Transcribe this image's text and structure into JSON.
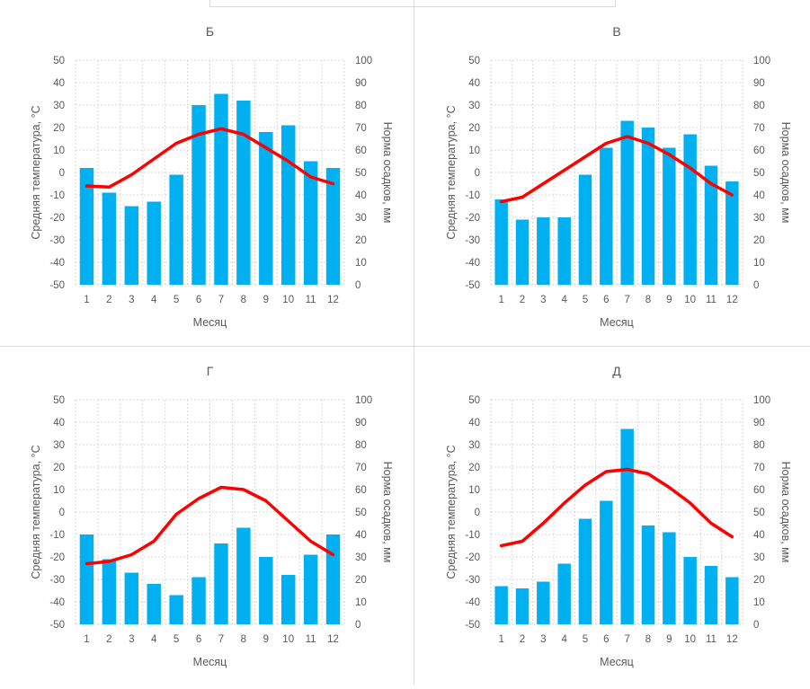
{
  "colors": {
    "bar": "#00B0F0",
    "line": "#FF0000",
    "grid": "#d9d9d9",
    "text": "#595959"
  },
  "common": {
    "xlabel": "Месяц",
    "ylabel_left": "Средняя температура, °С",
    "ylabel_right": "Норма осадков, мм",
    "months": [
      "1",
      "2",
      "3",
      "4",
      "5",
      "6",
      "7",
      "8",
      "9",
      "10",
      "11",
      "12"
    ],
    "left_ticks": [
      "50",
      "40",
      "30",
      "20",
      "10",
      "0",
      "-10",
      "-20",
      "-30",
      "-40",
      "-50"
    ],
    "right_ticks": [
      "100",
      "90",
      "80",
      "70",
      "60",
      "50",
      "40",
      "30",
      "20",
      "10",
      "0"
    ]
  },
  "chart_data": [
    {
      "type": "bar",
      "title": "Б",
      "categories": [
        "1",
        "2",
        "3",
        "4",
        "5",
        "6",
        "7",
        "8",
        "9",
        "10",
        "11",
        "12"
      ],
      "xlabel": "Месяц",
      "ylabel": "Средняя температура, °С",
      "y2label": "Норма осадков, мм",
      "ylim": [
        -50,
        50
      ],
      "y2lim": [
        0,
        100
      ],
      "grid": true,
      "series": [
        {
          "name": "Норма осадков, мм",
          "type": "bar",
          "axis": "right",
          "values": [
            52,
            41,
            35,
            37,
            49,
            80,
            85,
            82,
            68,
            71,
            55,
            52
          ]
        },
        {
          "name": "Средняя температура, °С",
          "type": "line",
          "axis": "left",
          "values": [
            -6,
            -6.5,
            -1,
            6,
            13,
            17,
            19.5,
            17,
            11,
            5,
            -2,
            -5
          ]
        }
      ]
    },
    {
      "type": "bar",
      "title": "В",
      "categories": [
        "1",
        "2",
        "3",
        "4",
        "5",
        "6",
        "7",
        "8",
        "9",
        "10",
        "11",
        "12"
      ],
      "xlabel": "Месяц",
      "ylabel": "Средняя температура, °С",
      "y2label": "Норма осадков, мм",
      "ylim": [
        -50,
        50
      ],
      "y2lim": [
        0,
        100
      ],
      "grid": true,
      "series": [
        {
          "name": "Норма осадков, мм",
          "type": "bar",
          "axis": "right",
          "values": [
            38,
            29,
            30,
            30,
            49,
            61,
            73,
            70,
            61,
            67,
            53,
            46
          ]
        },
        {
          "name": "Средняя температура, °С",
          "type": "line",
          "axis": "left",
          "values": [
            -13,
            -11,
            -5,
            1,
            7,
            13,
            16,
            13,
            8,
            2,
            -5,
            -10
          ]
        }
      ]
    },
    {
      "type": "bar",
      "title": "Г",
      "categories": [
        "1",
        "2",
        "3",
        "4",
        "5",
        "6",
        "7",
        "8",
        "9",
        "10",
        "11",
        "12"
      ],
      "xlabel": "Месяц",
      "ylabel": "Средняя температура, °С",
      "y2label": "Норма осадков, мм",
      "ylim": [
        -50,
        50
      ],
      "y2lim": [
        0,
        100
      ],
      "grid": true,
      "series": [
        {
          "name": "Норма осадков, мм",
          "type": "bar",
          "axis": "right",
          "values": [
            40,
            29,
            23,
            18,
            13,
            21,
            36,
            43,
            30,
            22,
            31,
            40
          ]
        },
        {
          "name": "Средняя температура, °С",
          "type": "line",
          "axis": "left",
          "values": [
            -23,
            -22,
            -19,
            -13,
            -1,
            6,
            11,
            10,
            5,
            -4,
            -13,
            -19
          ]
        }
      ]
    },
    {
      "type": "bar",
      "title": "Д",
      "categories": [
        "1",
        "2",
        "3",
        "4",
        "5",
        "6",
        "7",
        "8",
        "9",
        "10",
        "11",
        "12"
      ],
      "xlabel": "Месяц",
      "ylabel": "Средняя температура, °С",
      "y2label": "Норма осадков, мм",
      "ylim": [
        -50,
        50
      ],
      "y2lim": [
        0,
        100
      ],
      "grid": true,
      "series": [
        {
          "name": "Норма осадков, мм",
          "type": "bar",
          "axis": "right",
          "values": [
            17,
            16,
            19,
            27,
            47,
            55,
            87,
            44,
            41,
            30,
            26,
            21
          ]
        },
        {
          "name": "Средняя температура, °С",
          "type": "line",
          "axis": "left",
          "values": [
            -15,
            -13,
            -5,
            4,
            12,
            18,
            19,
            17,
            11,
            4,
            -5,
            -11
          ]
        }
      ]
    }
  ]
}
